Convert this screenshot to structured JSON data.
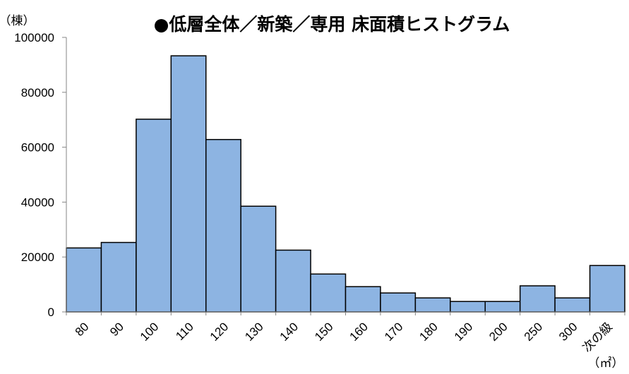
{
  "chart_data": {
    "type": "bar",
    "title": "●低層全体／新築／専用 床面積ヒストグラム",
    "ylabel": "（棟）",
    "xlabel": "（㎡）",
    "categories": [
      "80",
      "90",
      "100",
      "110",
      "120",
      "130",
      "140",
      "150",
      "160",
      "170",
      "180",
      "190",
      "200",
      "250",
      "300",
      "次の級"
    ],
    "values": [
      23300,
      25300,
      70200,
      93300,
      62800,
      38500,
      22500,
      13800,
      9200,
      6900,
      5100,
      3800,
      3800,
      9500,
      5100,
      16900
    ],
    "ylim": [
      0,
      100000
    ],
    "yticks": [
      "0",
      "20000",
      "40000",
      "60000",
      "80000",
      "100000"
    ],
    "grid": false,
    "colors": {
      "bar": "#8db4e2",
      "bar_edge": "#000000"
    }
  }
}
